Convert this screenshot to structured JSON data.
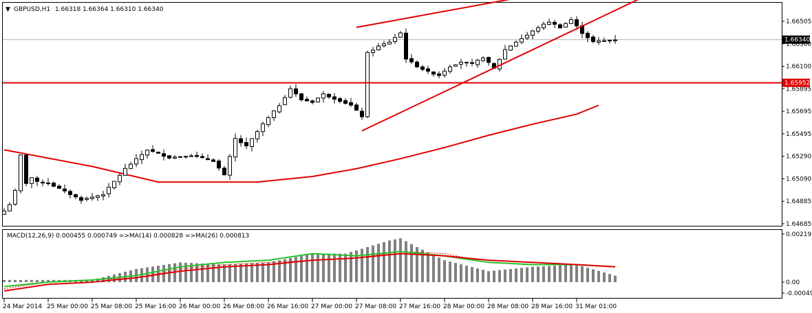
{
  "header": {
    "symbol": "GBPUSD,H1",
    "ohlc": "1.66318 1.66364 1.66310 1.66340"
  },
  "colors": {
    "background": "#ffffff",
    "grid": "#000000",
    "candle_up": "#ffffff",
    "candle_down": "#000000",
    "ma": "#e00000",
    "trendline": "#e00000",
    "macd_hist": "#808080",
    "macd_ma14": "#28c028",
    "macd_ma26": "#e00000",
    "price_tag": "#e00000"
  },
  "chart_data": {
    "type": "candlestick",
    "symbol": "GBPUSD",
    "timeframe": "H1",
    "price_axis": {
      "min": 1.64685,
      "max": 1.66505,
      "ticks": [
        "1.66505",
        "1.66300",
        "1.66100",
        "1.65895",
        "1.65695",
        "1.65495",
        "1.65290",
        "1.65090",
        "1.64885",
        "1.64685"
      ]
    },
    "current_price": "1.66340",
    "level_price": "1.65952",
    "x_labels": [
      "24 Mar 2014",
      "25 Mar 00:00",
      "25 Mar 08:00",
      "25 Mar 16:00",
      "26 Mar 00:00",
      "26 Mar 08:00",
      "26 Mar 16:00",
      "27 Mar 00:00",
      "27 Mar 08:00",
      "27 Mar 16:00",
      "28 Mar 00:00",
      "28 Mar 08:00",
      "28 Mar 16:00",
      "31 Mar 01:00"
    ],
    "x_label_index": [
      0,
      8,
      16,
      24,
      32,
      40,
      48,
      56,
      64,
      72,
      80,
      88,
      96,
      104
    ],
    "candle_count": 112,
    "close_anchors": [
      [
        0,
        1.648
      ],
      [
        1,
        1.6486
      ],
      [
        2,
        1.6498
      ],
      [
        3,
        1.653
      ],
      [
        4,
        1.6505
      ],
      [
        5,
        1.651
      ],
      [
        6,
        1.6506
      ],
      [
        8,
        1.6505
      ],
      [
        14,
        1.649
      ],
      [
        18,
        1.6495
      ],
      [
        22,
        1.6518
      ],
      [
        26,
        1.6535
      ],
      [
        30,
        1.6528
      ],
      [
        34,
        1.653
      ],
      [
        38,
        1.6525
      ],
      [
        40,
        1.6512
      ],
      [
        42,
        1.6545
      ],
      [
        44,
        1.6538
      ],
      [
        47,
        1.6558
      ],
      [
        50,
        1.6575
      ],
      [
        52,
        1.659
      ],
      [
        54,
        1.658
      ],
      [
        56,
        1.6578
      ],
      [
        58,
        1.6585
      ],
      [
        60,
        1.6581
      ],
      [
        63,
        1.6575
      ],
      [
        65,
        1.6565
      ],
      [
        66,
        1.6622
      ],
      [
        68,
        1.6628
      ],
      [
        70,
        1.6632
      ],
      [
        72,
        1.664
      ],
      [
        73,
        1.6617
      ],
      [
        75,
        1.661
      ],
      [
        77,
        1.6605
      ],
      [
        79,
        1.6602
      ],
      [
        81,
        1.661
      ],
      [
        83,
        1.6614
      ],
      [
        85,
        1.6612
      ],
      [
        87,
        1.6618
      ],
      [
        89,
        1.6608
      ],
      [
        91,
        1.6625
      ],
      [
        93,
        1.6632
      ],
      [
        95,
        1.6638
      ],
      [
        97,
        1.6645
      ],
      [
        99,
        1.665
      ],
      [
        101,
        1.6645
      ],
      [
        103,
        1.6652
      ],
      [
        105,
        1.664
      ],
      [
        107,
        1.6632
      ],
      [
        109,
        1.6633
      ],
      [
        111,
        1.6634
      ]
    ],
    "moving_average": {
      "name": "",
      "points": [
        [
          0,
          1.6535
        ],
        [
          16,
          1.652
        ],
        [
          28,
          1.6506
        ],
        [
          38,
          1.6506
        ],
        [
          46,
          1.6506
        ],
        [
          56,
          1.6511
        ],
        [
          64,
          1.6518
        ],
        [
          72,
          1.6527
        ],
        [
          80,
          1.6537
        ],
        [
          88,
          1.6548
        ],
        [
          96,
          1.6558
        ],
        [
          104,
          1.6567
        ],
        [
          108,
          1.6575
        ]
      ]
    },
    "horizontal_level": 1.65952,
    "trendlines": [
      {
        "from": [
          64,
          1.6645
        ],
        "to": [
          127,
          1.6702
        ]
      },
      {
        "from": [
          65,
          1.6552
        ],
        "to": [
          130,
          1.6705
        ]
      }
    ],
    "macd": {
      "label": "MACD(12,26,9) 0.000455 0.000749  =>MA(14) 0.000828  =>MA(26) 0.000813",
      "axis": {
        "min": -0.000499,
        "max": 0.002193,
        "ticks": [
          "0.002193",
          "0.00",
          "-0.000499"
        ]
      },
      "histogram_anchors": [
        [
          0,
          0.0001
        ],
        [
          4,
          0.0001
        ],
        [
          8,
          0.0001
        ],
        [
          16,
          0.0001
        ],
        [
          24,
          0.0006
        ],
        [
          32,
          0.0009
        ],
        [
          40,
          0.0008
        ],
        [
          48,
          0.0009
        ],
        [
          56,
          0.0013
        ],
        [
          62,
          0.0013
        ],
        [
          66,
          0.0016
        ],
        [
          70,
          0.0019
        ],
        [
          72,
          0.002
        ],
        [
          75,
          0.0016
        ],
        [
          80,
          0.001
        ],
        [
          88,
          0.0005
        ],
        [
          96,
          0.0007
        ],
        [
          104,
          0.0008
        ],
        [
          111,
          0.0003
        ]
      ],
      "signal_anchors": [
        [
          0,
          -0.0003
        ],
        [
          8,
          0.0
        ],
        [
          16,
          0.0001
        ],
        [
          24,
          0.0002
        ],
        [
          32,
          0.0006
        ],
        [
          40,
          0.0008
        ],
        [
          48,
          0.0009
        ],
        [
          56,
          0.001
        ],
        [
          64,
          0.0011
        ],
        [
          72,
          0.0014
        ],
        [
          80,
          0.0013
        ],
        [
          88,
          0.0009
        ],
        [
          96,
          0.0008
        ],
        [
          104,
          0.0008
        ],
        [
          111,
          0.0007
        ]
      ],
      "ma14_anchors": [
        [
          0,
          -0.0002
        ],
        [
          8,
          0.0
        ],
        [
          16,
          0.0001
        ],
        [
          24,
          0.0003
        ],
        [
          32,
          0.0007
        ],
        [
          40,
          0.0009
        ],
        [
          48,
          0.001
        ],
        [
          56,
          0.0013
        ],
        [
          64,
          0.0012
        ],
        [
          72,
          0.0014
        ],
        [
          80,
          0.0012
        ],
        [
          88,
          0.0009
        ],
        [
          96,
          0.0008
        ],
        [
          104,
          0.0008
        ],
        [
          111,
          0.0007
        ]
      ],
      "ma26_anchors": [
        [
          0,
          -0.0004
        ],
        [
          8,
          -0.0001
        ],
        [
          16,
          0.0
        ],
        [
          24,
          0.0002
        ],
        [
          32,
          0.0005
        ],
        [
          40,
          0.0007
        ],
        [
          48,
          0.0008
        ],
        [
          56,
          0.001
        ],
        [
          64,
          0.0011
        ],
        [
          72,
          0.0013
        ],
        [
          80,
          0.0012
        ],
        [
          88,
          0.001
        ],
        [
          96,
          0.0009
        ],
        [
          104,
          0.0008
        ],
        [
          111,
          0.0007
        ]
      ]
    }
  }
}
